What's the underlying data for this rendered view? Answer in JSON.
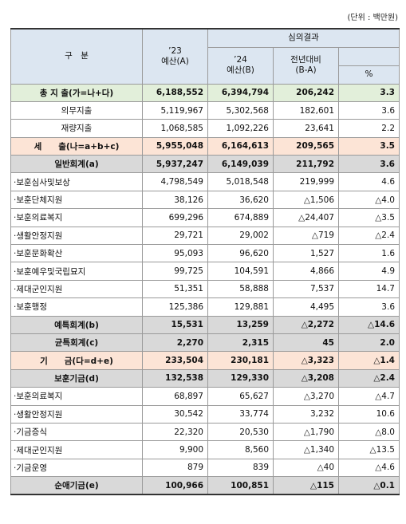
{
  "unit": "(단위 : 백만원)",
  "header": {
    "category": "구　분",
    "budget_23": "’23\n예산(A)",
    "review": "심의결과",
    "budget_24": "’24\n예산(B)",
    "change": "전년대비\n(B-A)",
    "percent": "%"
  },
  "table": {
    "rows": [
      [
        "총 지 출(가=나+다)",
        "6,188,552",
        "6,394,794",
        "206,242",
        "3.3"
      ],
      [
        "의무지출",
        "5,119,967",
        "5,302,568",
        "182,601",
        "3.6"
      ],
      [
        "재량지출",
        "1,068,585",
        "1,092,226",
        "23,641",
        "2.2"
      ],
      [
        "세　　출(나=a+b+c)",
        "5,955,048",
        "6,164,613",
        "209,565",
        "3.5"
      ],
      [
        "일반회계(a)",
        "5,937,247",
        "6,149,039",
        "211,792",
        "3.6"
      ],
      [
        "·보훈심사및보상",
        "4,798,549",
        "5,018,548",
        "219,999",
        "4.6"
      ],
      [
        "·보훈단체지원",
        "38,126",
        "36,620",
        "△1,506",
        "△4.0"
      ],
      [
        "·보훈의료복지",
        "699,296",
        "674,889",
        "△24,407",
        "△3.5"
      ],
      [
        "·생활안정지원",
        "29,721",
        "29,002",
        "△719",
        "△2.4"
      ],
      [
        "·보훈문화확산",
        "95,093",
        "96,620",
        "1,527",
        "1.6"
      ],
      [
        "·보훈예우및국립묘지",
        "99,725",
        "104,591",
        "4,866",
        "4.9"
      ],
      [
        "·제대군인지원",
        "51,351",
        "58,888",
        "7,537",
        "14.7"
      ],
      [
        "·보훈행정",
        "125,386",
        "129,881",
        "4,495",
        "3.6"
      ],
      [
        "예특회계(b)",
        "15,531",
        "13,259",
        "△2,272",
        "△14.6"
      ],
      [
        "균특회계(c)",
        "2,270",
        "2,315",
        "45",
        "2.0"
      ],
      [
        "기　　금(다=d+e)",
        "233,504",
        "230,181",
        "△3,323",
        "△1.4"
      ],
      [
        "보훈기금(d)",
        "132,538",
        "129,330",
        "△3,208",
        "△2.4"
      ],
      [
        "·보훈의료복지",
        "68,897",
        "65,627",
        "△3,270",
        "△4.7"
      ],
      [
        "·생활안정지원",
        "30,542",
        "33,774",
        "3,232",
        "10.6"
      ],
      [
        "·기금증식",
        "22,320",
        "20,530",
        "△1,790",
        "△8.0"
      ],
      [
        "·제대군인지원",
        "9,900",
        "8,560",
        "△1,340",
        "△13.5"
      ],
      [
        "·기금운영",
        "879",
        "839",
        "△40",
        "△4.6"
      ],
      [
        "순애기금(e)",
        "100,966",
        "100,851",
        "△115",
        "△0.1"
      ]
    ]
  }
}
